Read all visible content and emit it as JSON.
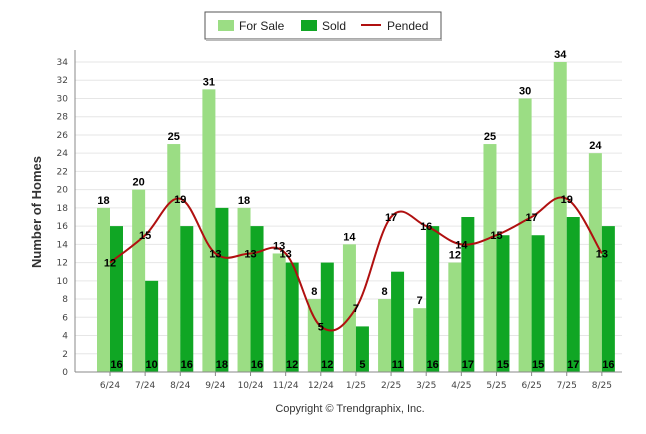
{
  "colors": {
    "for_sale": "#9bdd84",
    "sold": "#10a624",
    "pended": "#b01010",
    "grid": "#e6e6e6",
    "axis": "#888888"
  },
  "footer": {
    "copyright": "Copyright © Trendgraphix, Inc."
  },
  "chart_data": {
    "type": "bar",
    "ylabel": "Number of Homes",
    "xlabel": "",
    "ylim": [
      0,
      34
    ],
    "yticks": [
      0,
      2,
      4,
      6,
      8,
      10,
      12,
      14,
      16,
      18,
      20,
      22,
      24,
      26,
      28,
      30,
      32,
      34
    ],
    "grid": true,
    "legend_position": "top-center",
    "categories": [
      "6/24",
      "7/24",
      "8/24",
      "9/24",
      "10/24",
      "11/24",
      "12/24",
      "1/25",
      "2/25",
      "3/25",
      "4/25",
      "5/25",
      "6/25",
      "7/25",
      "8/25"
    ],
    "series": [
      {
        "name": "For Sale",
        "type": "bar",
        "values": [
          18,
          20,
          25,
          31,
          18,
          13,
          8,
          14,
          8,
          7,
          12,
          25,
          30,
          34,
          24
        ]
      },
      {
        "name": "Sold",
        "type": "bar",
        "values": [
          16,
          10,
          16,
          18,
          16,
          12,
          12,
          5,
          11,
          16,
          17,
          15,
          15,
          17,
          16
        ]
      },
      {
        "name": "Pended",
        "type": "line",
        "values": [
          12,
          15,
          19,
          13,
          13,
          13,
          5,
          7,
          17,
          16,
          14,
          15,
          17,
          19,
          13
        ]
      }
    ]
  }
}
